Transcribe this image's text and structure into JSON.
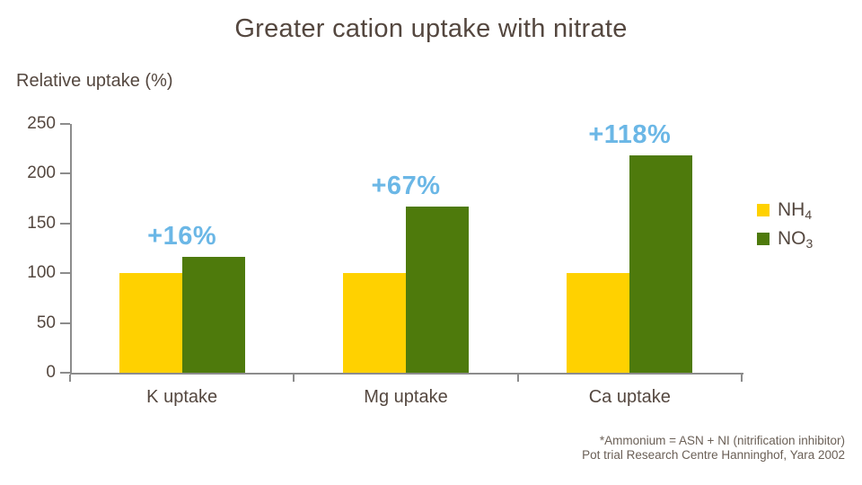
{
  "chart_data": {
    "type": "bar",
    "title": "Greater cation uptake with nitrate",
    "ylabel": "Relative uptake (%)",
    "categories": [
      "K uptake",
      "Mg uptake",
      "Ca uptake"
    ],
    "series": [
      {
        "name": "NH4",
        "label": "NH",
        "subscript": "4",
        "color": "#FFD100",
        "values": [
          100,
          100,
          100
        ]
      },
      {
        "name": "NO3",
        "label": "NO",
        "subscript": "3",
        "color": "#4E7A0C",
        "values": [
          116,
          167,
          218
        ]
      }
    ],
    "annotations": [
      {
        "category": "K uptake",
        "text": "+16%"
      },
      {
        "category": "Mg uptake",
        "text": "+67%"
      },
      {
        "category": "Ca uptake",
        "text": "+118%"
      }
    ],
    "ylim": [
      0,
      250
    ],
    "yticks": [
      0,
      50,
      100,
      150,
      200,
      250
    ],
    "grid": false,
    "legend_position": "right"
  },
  "colors": {
    "nh4_yellow": "#FFD100",
    "no3_green": "#4E7A0C",
    "annotation_blue": "#6BB7E6",
    "text_brown": "#54473F",
    "axis_grey": "#8C8C8C",
    "footnote_grey": "#6B6057",
    "background": "#FFFFFF"
  },
  "footer": {
    "line1": "*Ammonium = ASN + NI (nitrification inhibitor)",
    "line2": "Pot trial Research Centre Hanninghof, Yara 2002"
  }
}
